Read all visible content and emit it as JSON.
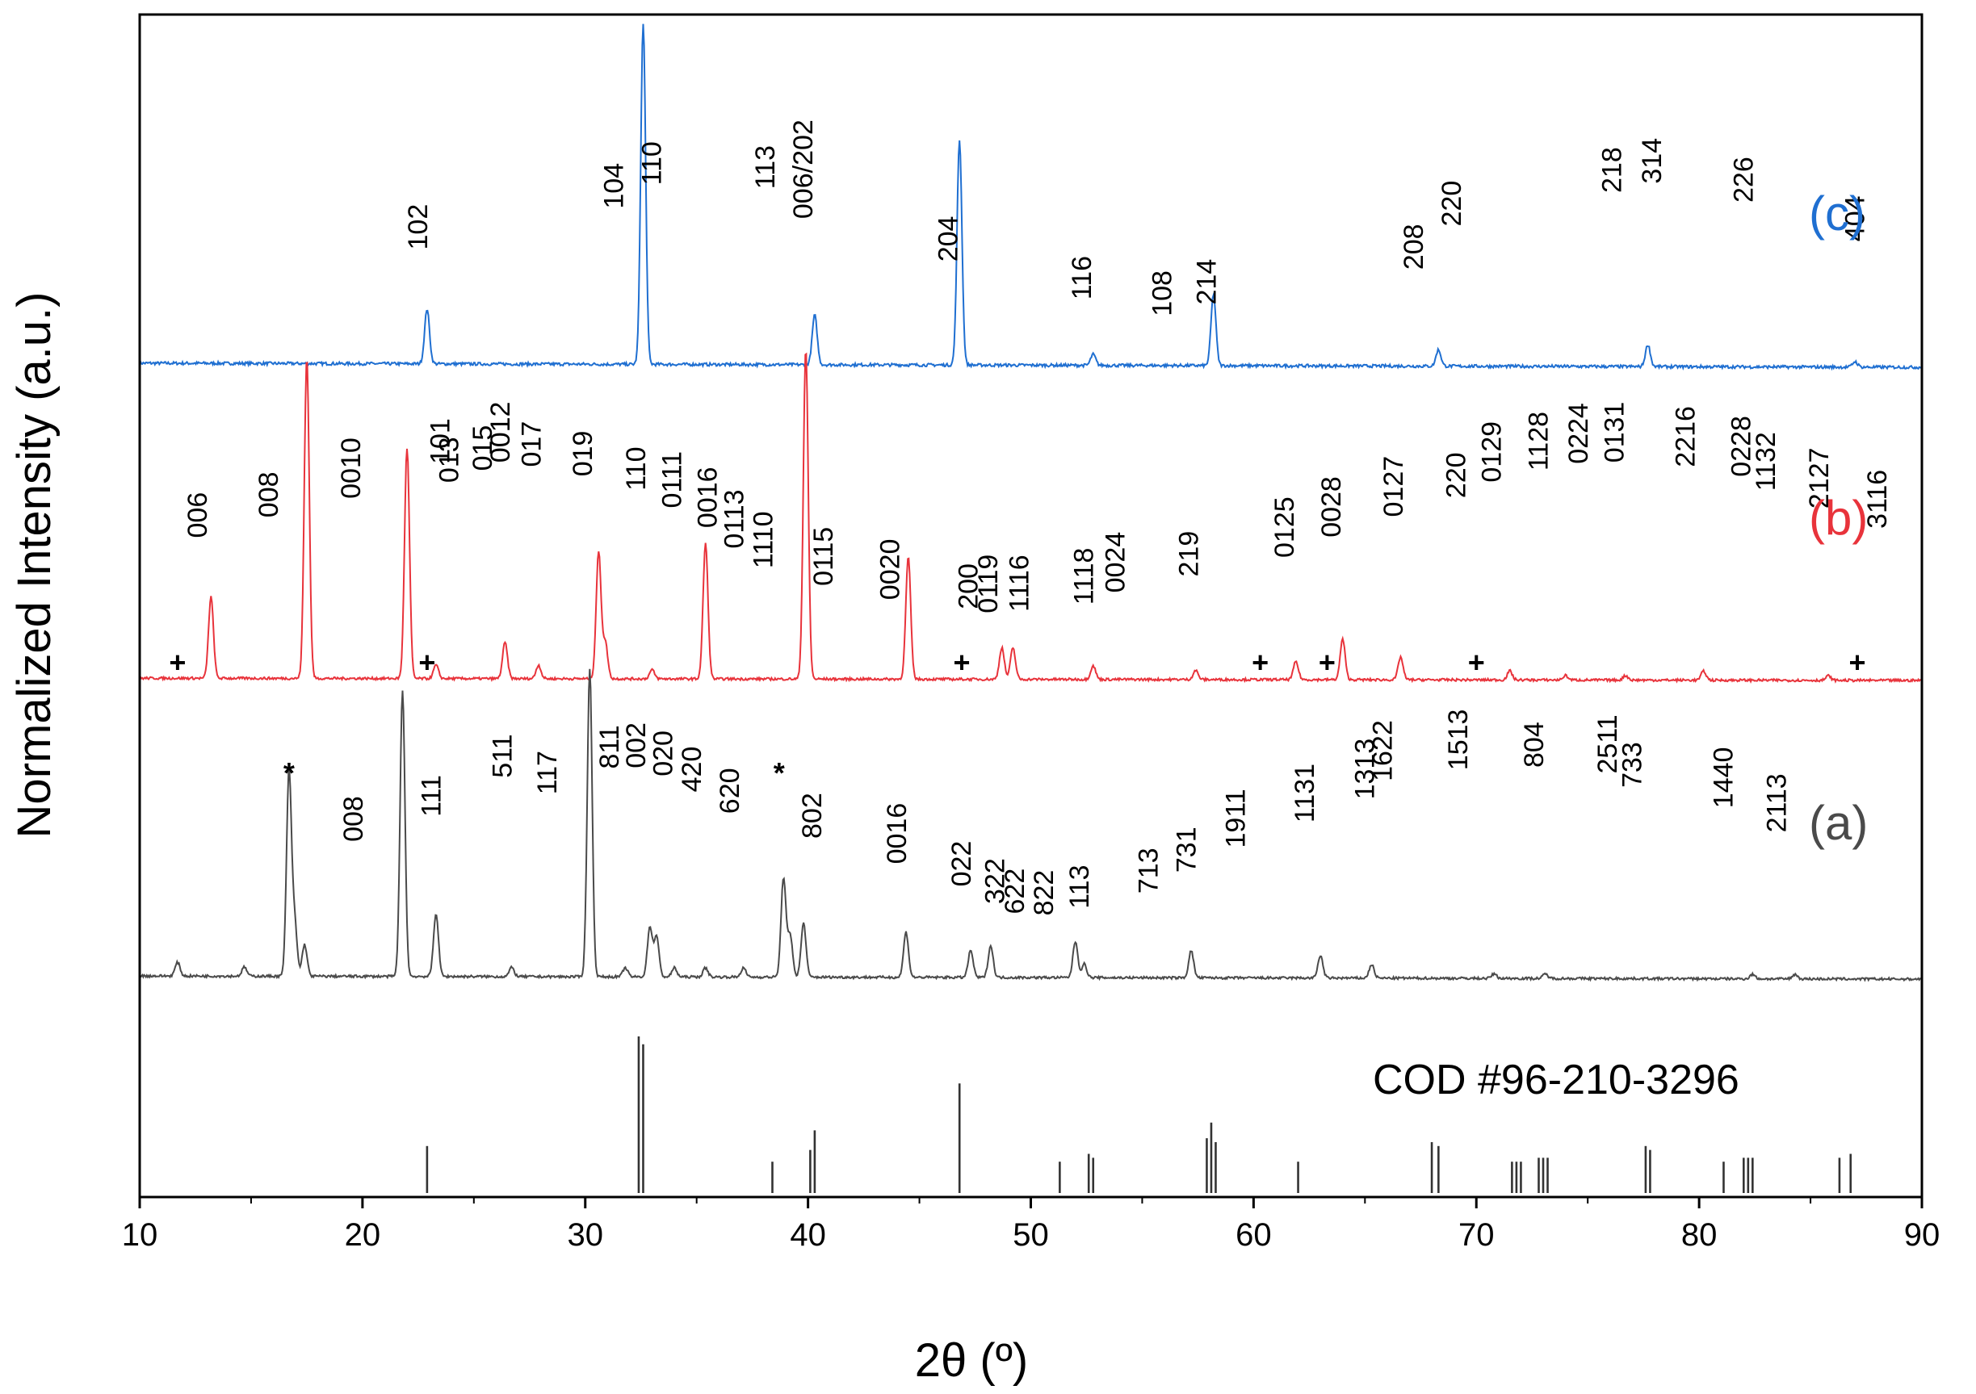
{
  "chart_data": {
    "type": "line",
    "xlabel": "2θ (º)",
    "ylabel": "Normalized Intensity (a.u.)",
    "xlim": [
      10,
      90
    ],
    "xticks": [
      10,
      20,
      30,
      40,
      50,
      60,
      70,
      80,
      90
    ],
    "grid": false,
    "series": [
      {
        "id": "c",
        "name": "(c)",
        "color": "#1f6fd1",
        "baseline": [
          [
            10,
            0.75
          ],
          [
            90,
            0.0
          ]
        ],
        "peaks": [
          [
            22.9,
            10
          ],
          [
            32.6,
            62
          ],
          [
            40.3,
            9
          ],
          [
            46.8,
            41
          ],
          [
            52.8,
            2
          ],
          [
            58.2,
            13
          ],
          [
            68.3,
            3
          ],
          [
            77.7,
            4
          ],
          [
            87,
            1
          ]
        ],
        "labels": [
          {
            "t": "102",
            "x": 22.9
          },
          {
            "t": "104",
            "x": 31.7
          },
          {
            "t": "110",
            "x": 33.4
          },
          {
            "t": "113",
            "x": 38.5
          },
          {
            "t": "006/202",
            "x": 40.2
          },
          {
            "t": "204",
            "x": 46.7
          },
          {
            "t": "116",
            "x": 52.7
          },
          {
            "t": "108",
            "x": 56.3
          },
          {
            "t": "214",
            "x": 58.3
          },
          {
            "t": "208",
            "x": 67.6
          },
          {
            "t": "220",
            "x": 69.3
          },
          {
            "t": "218",
            "x": 76.5
          },
          {
            "t": "314",
            "x": 78.3
          },
          {
            "t": "226",
            "x": 82.4
          },
          {
            "t": "404",
            "x": 87.4
          }
        ]
      },
      {
        "id": "b",
        "name": "(b)",
        "color": "#e8333b",
        "baseline": [
          [
            10,
            0.5
          ],
          [
            90,
            0.0
          ]
        ],
        "peaks": [
          [
            13.2,
            18
          ],
          [
            17.5,
            71
          ],
          [
            22.0,
            51
          ],
          [
            23.3,
            3
          ],
          [
            26.4,
            8
          ],
          [
            27.9,
            3
          ],
          [
            30.6,
            28
          ],
          [
            30.9,
            8
          ],
          [
            33.0,
            2
          ],
          [
            35.4,
            30
          ],
          [
            39.9,
            73
          ],
          [
            44.5,
            27
          ],
          [
            48.7,
            7
          ],
          [
            49.2,
            7
          ],
          [
            52.8,
            3
          ],
          [
            57.4,
            2
          ],
          [
            61.9,
            4
          ],
          [
            64.0,
            9
          ],
          [
            66.6,
            5
          ],
          [
            71.5,
            2
          ],
          [
            74.0,
            1
          ],
          [
            76.7,
            1
          ],
          [
            80.2,
            2
          ],
          [
            85.8,
            1
          ]
        ],
        "labels": [
          {
            "t": "006",
            "x": 13.0
          },
          {
            "t": "008",
            "x": 16.2
          },
          {
            "t": "0010",
            "x": 19.9
          },
          {
            "t": "013",
            "x": 24.3
          },
          {
            "t": "015",
            "x": 25.8
          },
          {
            "t": "101",
            "x": 23.9
          },
          {
            "t": "0012",
            "x": 26.6
          },
          {
            "t": "017",
            "x": 28.0
          },
          {
            "t": "019",
            "x": 30.3
          },
          {
            "t": "110",
            "x": 32.7
          },
          {
            "t": "0111",
            "x": 34.3
          },
          {
            "t": "0016",
            "x": 35.9
          },
          {
            "t": "0113",
            "x": 37.1
          },
          {
            "t": "1110",
            "x": 38.4
          },
          {
            "t": "0115",
            "x": 41.1
          },
          {
            "t": "0020",
            "x": 44.1
          },
          {
            "t": "200",
            "x": 47.6
          },
          {
            "t": "0119",
            "x": 48.5
          },
          {
            "t": "1116",
            "x": 49.9
          },
          {
            "t": "1118",
            "x": 52.8
          },
          {
            "t": "0024",
            "x": 54.2
          },
          {
            "t": "219",
            "x": 57.5
          },
          {
            "t": "0125",
            "x": 61.8
          },
          {
            "t": "0028",
            "x": 63.9
          },
          {
            "t": "0127",
            "x": 66.7
          },
          {
            "t": "220",
            "x": 69.5
          },
          {
            "t": "0129",
            "x": 71.1
          },
          {
            "t": "1128",
            "x": 73.2
          },
          {
            "t": "0224",
            "x": 75.0
          },
          {
            "t": "0131",
            "x": 76.6
          },
          {
            "t": "2216",
            "x": 79.8
          },
          {
            "t": "0228",
            "x": 82.3
          },
          {
            "t": "1132",
            "x": 83.4
          },
          {
            "t": "2127",
            "x": 85.8
          },
          {
            "t": "3116",
            "x": 88.4
          }
        ],
        "markers": [
          {
            "t": "+",
            "x": 11.7
          },
          {
            "t": "+",
            "x": 22.9
          },
          {
            "t": "+",
            "x": 46.9
          },
          {
            "t": "+",
            "x": 60.3
          },
          {
            "t": "+",
            "x": 63.3
          },
          {
            "t": "+",
            "x": 70.0
          },
          {
            "t": "+",
            "x": 87.1
          }
        ]
      },
      {
        "id": "a",
        "name": "(a)",
        "color": "#4a4a4a",
        "baseline": [
          [
            10,
            0.7
          ],
          [
            90,
            0.0
          ]
        ],
        "peaks": [
          [
            11.7,
            3
          ],
          [
            14.7,
            2
          ],
          [
            16.7,
            45
          ],
          [
            16.95,
            12
          ],
          [
            17.4,
            7
          ],
          [
            21.8,
            63
          ],
          [
            23.3,
            14
          ],
          [
            26.7,
            2
          ],
          [
            30.2,
            68
          ],
          [
            31.8,
            2
          ],
          [
            32.9,
            11
          ],
          [
            33.2,
            9
          ],
          [
            34.0,
            2
          ],
          [
            35.4,
            2
          ],
          [
            37.1,
            2
          ],
          [
            38.9,
            22
          ],
          [
            39.2,
            9
          ],
          [
            39.8,
            12
          ],
          [
            44.4,
            10
          ],
          [
            47.3,
            6
          ],
          [
            48.2,
            7
          ],
          [
            52.0,
            8
          ],
          [
            52.4,
            3
          ],
          [
            57.2,
            6
          ],
          [
            63.0,
            5
          ],
          [
            65.3,
            3
          ],
          [
            70.8,
            1
          ],
          [
            73.1,
            1
          ],
          [
            82.4,
            1
          ],
          [
            84.3,
            1
          ]
        ],
        "labels": [
          {
            "t": "008",
            "x": 20.0
          },
          {
            "t": "111",
            "x": 23.5
          },
          {
            "t": "117",
            "x": 28.7
          },
          {
            "t": "511",
            "x": 26.7
          },
          {
            "t": "811",
            "x": 31.5
          },
          {
            "t": "002",
            "x": 32.7
          },
          {
            "t": "020",
            "x": 33.9
          },
          {
            "t": "420",
            "x": 35.2
          },
          {
            "t": "620",
            "x": 36.9
          },
          {
            "t": "802",
            "x": 40.6
          },
          {
            "t": "0016",
            "x": 44.4
          },
          {
            "t": "022",
            "x": 47.3
          },
          {
            "t": "322",
            "x": 48.8
          },
          {
            "t": "622",
            "x": 49.7
          },
          {
            "t": "822",
            "x": 51.0
          },
          {
            "t": "113",
            "x": 52.6
          },
          {
            "t": "713",
            "x": 55.7
          },
          {
            "t": "731",
            "x": 57.4
          },
          {
            "t": "1911",
            "x": 59.6
          },
          {
            "t": "1131",
            "x": 62.7
          },
          {
            "t": "1313",
            "x": 65.4
          },
          {
            "t": "1622",
            "x": 66.2
          },
          {
            "t": "1513",
            "x": 69.6
          },
          {
            "t": "804",
            "x": 73.0
          },
          {
            "t": "2511",
            "x": 76.3
          },
          {
            "t": "733",
            "x": 77.4
          },
          {
            "t": "1440",
            "x": 81.5
          },
          {
            "t": "2113",
            "x": 83.9
          }
        ],
        "markers": [
          {
            "t": "*",
            "x": 16.7
          },
          {
            "t": "*",
            "x": 38.7
          }
        ]
      },
      {
        "id": "ref",
        "name": "COD #96-210-3296",
        "color": "#333333",
        "type": "stick",
        "sticks": [
          [
            22.9,
            12
          ],
          [
            32.4,
            40
          ],
          [
            32.6,
            38
          ],
          [
            38.4,
            8
          ],
          [
            40.1,
            11
          ],
          [
            40.3,
            16
          ],
          [
            46.8,
            28
          ],
          [
            51.3,
            8
          ],
          [
            52.6,
            10
          ],
          [
            52.8,
            9
          ],
          [
            57.9,
            14
          ],
          [
            58.1,
            18
          ],
          [
            58.3,
            13
          ],
          [
            62.0,
            8
          ],
          [
            68.0,
            13
          ],
          [
            68.3,
            12
          ],
          [
            71.6,
            8
          ],
          [
            71.8,
            8
          ],
          [
            72.0,
            8
          ],
          [
            72.8,
            9
          ],
          [
            73.0,
            9
          ],
          [
            73.2,
            9
          ],
          [
            77.6,
            12
          ],
          [
            77.8,
            11
          ],
          [
            81.1,
            8
          ],
          [
            82.0,
            9
          ],
          [
            82.2,
            9
          ],
          [
            82.4,
            9
          ],
          [
            86.3,
            9
          ],
          [
            86.8,
            10
          ]
        ]
      }
    ],
    "annotations": [
      "(c)",
      "(b)",
      "(a)",
      "COD #96-210-3296"
    ]
  }
}
